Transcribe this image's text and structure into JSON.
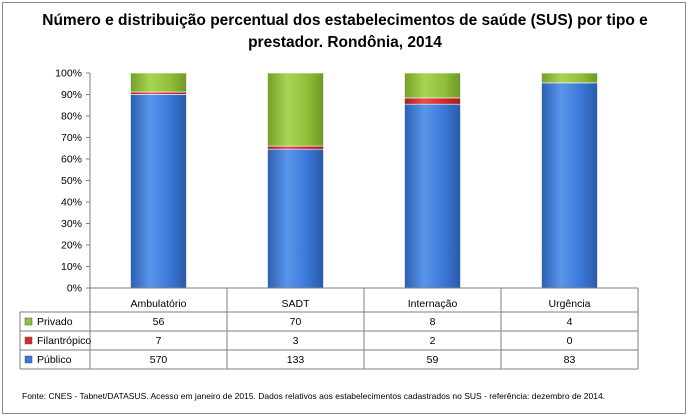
{
  "chart_data": {
    "type": "bar",
    "stacked": "percent",
    "title_lines": [
      "Número e distribuição percentual dos estabelecimentos de saúde (SUS) por tipo e",
      "prestador. Rondônia, 2014"
    ],
    "categories": [
      "Ambulatório",
      "SADT",
      "Internação",
      "Urgência"
    ],
    "series": [
      {
        "name": "Privado",
        "values": [
          56,
          70,
          8,
          4
        ],
        "color": "#92c03a"
      },
      {
        "name": "Filantrópico",
        "values": [
          7,
          3,
          2,
          0
        ],
        "color": "#d42a2a"
      },
      {
        "name": "Público",
        "values": [
          570,
          133,
          59,
          83
        ],
        "color": "#3b78d8"
      }
    ],
    "stack_order_bottom_to_top": [
      "Público",
      "Filantrópico",
      "Privado"
    ],
    "y_ticks": [
      "0%",
      "10%",
      "20%",
      "30%",
      "40%",
      "50%",
      "60%",
      "70%",
      "80%",
      "90%",
      "100%"
    ],
    "ylim": [
      0,
      100
    ],
    "grid": false,
    "legend": "data-table-below",
    "footnote": "Fonte: CNES - Tabnet/DATASUS. Acesso em janeiro de 2015.  Dados relativos aos estabelecimentos cadastrados no SUS  -  referência:  dezembro de 2014."
  }
}
